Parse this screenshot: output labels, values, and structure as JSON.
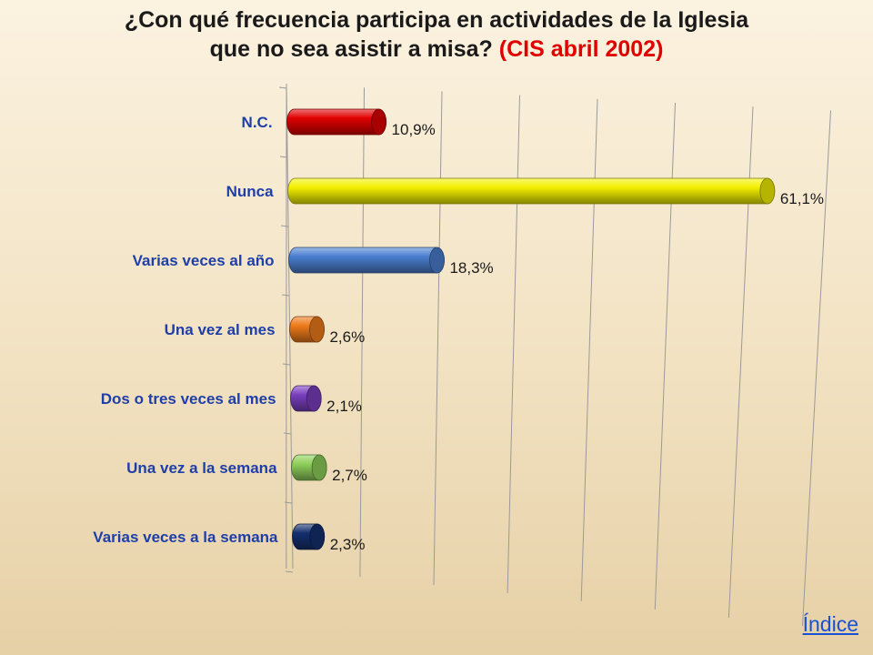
{
  "title": {
    "line1": "¿Con qué frecuencia participa en actividades de la Iglesia",
    "line2": "que no sea asistir a misa?",
    "source": "(CIS abril 2002)"
  },
  "footer": {
    "index_link": "Índice"
  },
  "chart_data": {
    "type": "bar",
    "orientation": "horizontal",
    "title": "¿Con qué frecuencia participa en actividades de la Iglesia que no sea asistir a misa? (CIS abril 2002)",
    "categories": [
      "N.C.",
      "Nunca",
      "Varias veces al año",
      "Una vez al mes",
      "Dos o tres veces al mes",
      "Una vez a la semana",
      "Varias veces a la semana"
    ],
    "values": [
      10.9,
      61.1,
      18.3,
      2.6,
      2.1,
      2.7,
      2.3
    ],
    "value_labels": [
      "10,9%",
      "61,1%",
      "18,3%",
      "2,6%",
      "2,1%",
      "2,7%",
      "2,3%"
    ],
    "colors": [
      "#e00000",
      "#f4f000",
      "#4a7fd0",
      "#ef7a1a",
      "#7a3fbf",
      "#8fd05a",
      "#15306f"
    ],
    "xlim": [
      0,
      70
    ],
    "grid": true,
    "legend": "none"
  }
}
